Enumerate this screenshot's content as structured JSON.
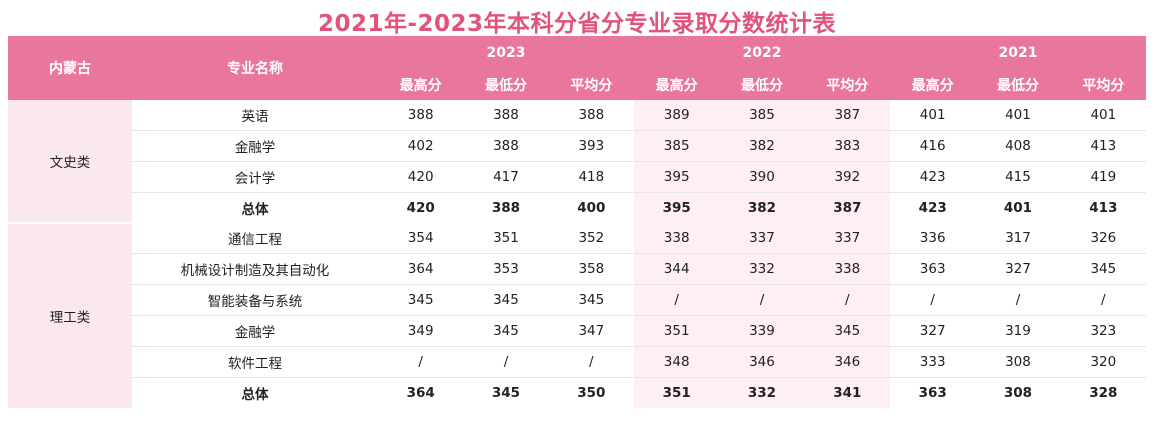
{
  "title": "2021年-2023年本科分省分专业录取分数统计表",
  "header": {
    "province": "内蒙古",
    "major": "专业名称",
    "years": [
      "2023",
      "2022",
      "2021"
    ],
    "metrics": [
      "最高分",
      "最低分",
      "平均分"
    ]
  },
  "groups": [
    {
      "category": "文史类",
      "rows": [
        {
          "name": "英语",
          "v": [
            "388",
            "388",
            "388",
            "389",
            "385",
            "387",
            "401",
            "401",
            "401"
          ]
        },
        {
          "name": "金融学",
          "v": [
            "402",
            "388",
            "393",
            "385",
            "382",
            "383",
            "416",
            "408",
            "413"
          ]
        },
        {
          "name": "会计学",
          "v": [
            "420",
            "417",
            "418",
            "395",
            "390",
            "392",
            "423",
            "415",
            "419"
          ]
        },
        {
          "name": "总体",
          "v": [
            "420",
            "388",
            "400",
            "395",
            "382",
            "387",
            "423",
            "401",
            "413"
          ]
        }
      ]
    },
    {
      "category": "理工类",
      "rows": [
        {
          "name": "通信工程",
          "v": [
            "354",
            "351",
            "352",
            "338",
            "337",
            "337",
            "336",
            "317",
            "326"
          ]
        },
        {
          "name": "机械设计制造及其自动化",
          "v": [
            "364",
            "353",
            "358",
            "344",
            "332",
            "338",
            "363",
            "327",
            "345"
          ]
        },
        {
          "name": "智能装备与系统",
          "v": [
            "345",
            "345",
            "345",
            "/",
            "/",
            "/",
            "/",
            "/",
            "/"
          ]
        },
        {
          "name": "金融学",
          "v": [
            "349",
            "345",
            "347",
            "351",
            "339",
            "345",
            "327",
            "319",
            "323"
          ]
        },
        {
          "name": "软件工程",
          "v": [
            "/",
            "/",
            "/",
            "348",
            "346",
            "346",
            "333",
            "308",
            "320"
          ]
        },
        {
          "name": "总体",
          "v": [
            "364",
            "345",
            "350",
            "351",
            "332",
            "341",
            "363",
            "308",
            "328"
          ]
        }
      ]
    }
  ]
}
